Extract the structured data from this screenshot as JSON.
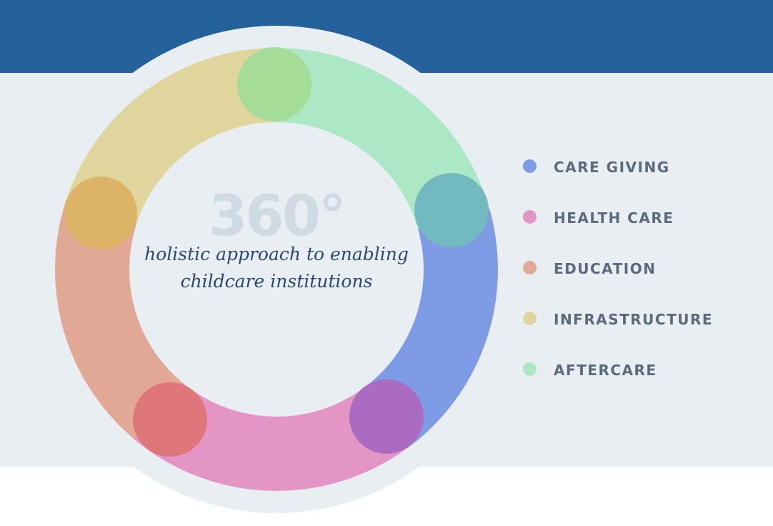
{
  "colors": {
    "header_band": "#25619a",
    "body_band": "#e9eef3",
    "ring_halo": "#e9eef3",
    "center_number": "#cfdae3",
    "tagline": "#2b4a6b",
    "legend_text": "#5a6b7c"
  },
  "center": {
    "number": "360°",
    "tagline_line1": "holistic approach to enabling",
    "tagline_line2": "childcare institutions"
  },
  "legend": [
    {
      "label": "CARE GIVING",
      "color": "#7e9be6"
    },
    {
      "label": "HEALTH CARE",
      "color": "#e395c6"
    },
    {
      "label": "EDUCATION",
      "color": "#e2a896"
    },
    {
      "label": "INFRASTRUCTURE",
      "color": "#e0d69d"
    },
    {
      "label": "AFTERCARE",
      "color": "#ace8c6"
    }
  ],
  "node_colors": [
    "#a5dc98",
    "#72bac0",
    "#ab6bc1",
    "#df7679",
    "#ddb467"
  ]
}
